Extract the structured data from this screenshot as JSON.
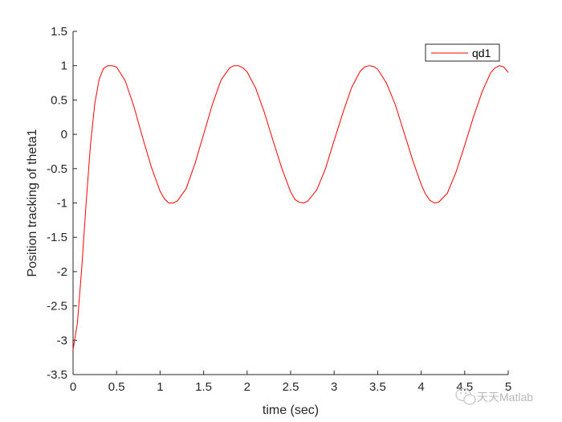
{
  "chart_data": {
    "type": "line",
    "xlabel": "time (sec)",
    "ylabel": "Position tracking of theta1",
    "xlim": [
      0,
      5
    ],
    "ylim": [
      -3.5,
      1.5
    ],
    "xticks": [
      0,
      0.5,
      1,
      1.5,
      2,
      2.5,
      3,
      3.5,
      4,
      4.5,
      5
    ],
    "yticks": [
      1.5,
      1,
      0.5,
      0,
      -0.5,
      -1,
      -1.5,
      -2,
      -2.5,
      -3,
      -3.5
    ],
    "xtick_labels": [
      "0",
      "0.5",
      "1",
      "1.5",
      "2",
      "2.5",
      "3",
      "3.5",
      "4",
      "4.5",
      "5"
    ],
    "ytick_labels": [
      "1.5",
      "1",
      "0.5",
      "0",
      "-0.5",
      "-1",
      "-1.5",
      "-2",
      "-2.5",
      "-3",
      "-3.5"
    ],
    "grid": false,
    "legend_position": "top-right",
    "series": [
      {
        "name": "qd1",
        "color": "#ff0000",
        "x": [
          0,
          0.05,
          0.1,
          0.15,
          0.2,
          0.25,
          0.3,
          0.35,
          0.4,
          0.45,
          0.5,
          0.6,
          0.7,
          0.8,
          0.9,
          1.0,
          1.05,
          1.1,
          1.15,
          1.2,
          1.3,
          1.4,
          1.5,
          1.6,
          1.7,
          1.8,
          1.85,
          1.9,
          1.95,
          2.0,
          2.1,
          2.2,
          2.3,
          2.4,
          2.5,
          2.55,
          2.6,
          2.65,
          2.7,
          2.8,
          2.9,
          3.0,
          3.1,
          3.2,
          3.3,
          3.35,
          3.4,
          3.45,
          3.5,
          3.6,
          3.7,
          3.8,
          3.9,
          4.0,
          4.05,
          4.1,
          4.15,
          4.2,
          4.3,
          4.4,
          4.5,
          4.6,
          4.7,
          4.8,
          4.85,
          4.9,
          4.95,
          5.0
        ],
        "values": [
          -3.14,
          -2.75,
          -1.95,
          -1.0,
          -0.15,
          0.45,
          0.8,
          0.96,
          1.0,
          1.0,
          0.98,
          0.78,
          0.4,
          -0.05,
          -0.48,
          -0.83,
          -0.94,
          -1.0,
          -1.0,
          -0.97,
          -0.79,
          -0.43,
          0.0,
          0.43,
          0.79,
          0.97,
          1.0,
          1.0,
          0.97,
          0.91,
          0.67,
          0.31,
          -0.1,
          -0.5,
          -0.84,
          -0.95,
          -0.99,
          -1.0,
          -0.97,
          -0.81,
          -0.5,
          -0.09,
          0.31,
          0.68,
          0.92,
          0.98,
          1.0,
          0.99,
          0.95,
          0.75,
          0.44,
          0.04,
          -0.37,
          -0.73,
          -0.87,
          -0.96,
          -1.0,
          -0.99,
          -0.86,
          -0.55,
          -0.16,
          0.25,
          0.62,
          0.9,
          0.97,
          1.0,
          0.98,
          0.9
        ]
      }
    ]
  },
  "watermark": {
    "text": "天天Matlab",
    "icon": "wechat-icon"
  }
}
